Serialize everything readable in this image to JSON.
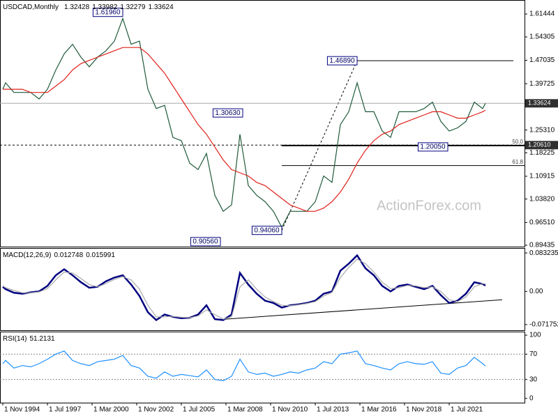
{
  "chart_data": [
    {
      "type": "line",
      "title": "USDCAD,Monthly",
      "ohlc": [
        1.32428,
        1.33982,
        1.32279,
        1.33624
      ],
      "watermark": "ActionForex.com",
      "x": [
        "1994-11-01",
        "1995-01-01",
        "1995-07-01",
        "1996-01-01",
        "1996-07-01",
        "1997-01-01",
        "1997-07-01",
        "1998-01-01",
        "1998-07-01",
        "1999-01-01",
        "1999-07-01",
        "2000-01-01",
        "2000-07-01",
        "2001-01-01",
        "2001-07-01",
        "2002-01-01",
        "2002-07-01",
        "2003-01-01",
        "2003-07-01",
        "2004-01-01",
        "2004-07-01",
        "2005-01-01",
        "2005-07-01",
        "2006-01-01",
        "2006-07-01",
        "2007-01-01",
        "2007-07-01",
        "2008-01-01",
        "2008-07-01",
        "2009-01-01",
        "2009-07-01",
        "2010-01-01",
        "2010-07-01",
        "2011-01-01",
        "2011-07-01",
        "2012-01-01",
        "2012-07-01",
        "2013-01-01",
        "2013-07-01",
        "2014-01-01",
        "2014-07-01",
        "2015-01-01",
        "2015-07-01",
        "2016-01-01",
        "2016-07-01",
        "2017-01-01",
        "2017-07-01",
        "2018-01-01",
        "2018-07-01",
        "2019-01-01",
        "2019-07-01",
        "2020-01-01",
        "2020-07-01",
        "2021-01-01",
        "2021-07-01",
        "2022-01-01",
        "2022-07-01",
        "2023-01-01",
        "2023-07-01",
        "2023-09-01"
      ],
      "series": [
        {
          "color": "#1f5a3a",
          "values": [
            1.38,
            1.4,
            1.37,
            1.37,
            1.37,
            1.35,
            1.38,
            1.44,
            1.49,
            1.52,
            1.48,
            1.45,
            1.48,
            1.5,
            1.53,
            1.6,
            1.52,
            1.53,
            1.38,
            1.32,
            1.33,
            1.23,
            1.22,
            1.15,
            1.13,
            1.18,
            1.05,
            1.0,
            1.02,
            1.24,
            1.08,
            1.05,
            1.03,
            1.0,
            0.95,
            1.0,
            1.0,
            1.0,
            1.03,
            1.11,
            1.09,
            1.27,
            1.31,
            1.4,
            1.31,
            1.31,
            1.25,
            1.23,
            1.31,
            1.31,
            1.31,
            1.32,
            1.34,
            1.28,
            1.25,
            1.26,
            1.28,
            1.34,
            1.32,
            1.33624
          ]
        },
        {
          "color": "#e0201a",
          "values": [
            1.38,
            1.38,
            1.38,
            1.38,
            1.37,
            1.37,
            1.37,
            1.39,
            1.41,
            1.44,
            1.46,
            1.47,
            1.48,
            1.49,
            1.5,
            1.51,
            1.51,
            1.51,
            1.49,
            1.46,
            1.43,
            1.39,
            1.35,
            1.31,
            1.27,
            1.24,
            1.2,
            1.16,
            1.13,
            1.12,
            1.11,
            1.09,
            1.08,
            1.06,
            1.04,
            1.02,
            1.01,
            1.0,
            1.0,
            1.01,
            1.03,
            1.06,
            1.1,
            1.15,
            1.19,
            1.22,
            1.24,
            1.25,
            1.27,
            1.28,
            1.29,
            1.3,
            1.31,
            1.31,
            1.3,
            1.29,
            1.29,
            1.3,
            1.31,
            1.315
          ]
        }
      ],
      "xlim": [
        "1994-09-01",
        "2026-01-01"
      ],
      "ylim": [
        0.89,
        1.658
      ],
      "yticks": [
        1.61444,
        1.54305,
        1.47035,
        1.39725,
        {
          "value": 1.2531,
          "label": "1.25310"
        },
        1.18225,
        1.10915,
        {
          "value": 1.0382,
          "label": "1.03820"
        },
        {
          "value": 0.9651,
          "label": "0.96510"
        },
        0.89435
      ],
      "annotations": [
        {
          "x": "2002-01-01",
          "value": 1.6196,
          "label": "1.61960"
        },
        {
          "x": "2009-03-01",
          "value": 1.3063,
          "label": "1.30630"
        },
        {
          "x": "2007-11-01",
          "value": 0.9056,
          "label": "0.90560"
        },
        {
          "x": "2011-07-01",
          "value": 0.9406,
          "label": "0.94060"
        },
        {
          "x": "2016-01-01",
          "value": 1.4689,
          "label": "1.46890"
        },
        {
          "x": "2021-06-01",
          "value": 1.2005,
          "label": "1.20050"
        }
      ],
      "lines": [
        {
          "x": [
            "2011-07-01",
            "2016-01-01"
          ],
          "values": [
            0.9406,
            1.4689
          ],
          "style": "dashed"
        },
        {
          "x": [
            "2016-01-01",
            "2025-05-01"
          ],
          "values": [
            1.4689,
            1.4689
          ],
          "style": "solid"
        }
      ],
      "hline": {
        "value": 1.2061,
        "label": "1.20610"
      },
      "fib_levels": [
        {
          "value": 1.20475,
          "label": "50.0"
        },
        {
          "value": 1.14241,
          "label": "61.8"
        }
      ]
    },
    {
      "type": "line",
      "title": "MACD(12,26,9)",
      "x": [
        "1994-11-01",
        "1995-01-01",
        "1995-07-01",
        "1996-01-01",
        "1996-07-01",
        "1997-01-01",
        "1997-07-01",
        "1998-01-01",
        "1998-07-01",
        "1999-01-01",
        "1999-07-01",
        "2000-01-01",
        "2000-07-01",
        "2001-01-01",
        "2001-07-01",
        "2002-01-01",
        "2002-07-01",
        "2003-01-01",
        "2003-07-01",
        "2004-01-01",
        "2004-07-01",
        "2005-01-01",
        "2005-07-01",
        "2006-01-01",
        "2006-07-01",
        "2007-01-01",
        "2007-07-01",
        "2008-01-01",
        "2008-07-01",
        "2009-01-01",
        "2009-07-01",
        "2010-01-01",
        "2010-07-01",
        "2011-01-01",
        "2011-07-01",
        "2012-01-01",
        "2012-07-01",
        "2013-01-01",
        "2013-07-01",
        "2014-01-01",
        "2014-07-01",
        "2015-01-01",
        "2015-07-01",
        "2016-01-01",
        "2016-07-01",
        "2017-01-01",
        "2017-07-01",
        "2018-01-01",
        "2018-07-01",
        "2019-01-01",
        "2019-07-01",
        "2020-01-01",
        "2020-07-01",
        "2021-01-01",
        "2021-07-01",
        "2022-01-01",
        "2022-07-01",
        "2023-01-01",
        "2023-07-01",
        "2023-09-01"
      ],
      "series": [
        {
          "color": "#000080",
          "values": [
            0.01,
            0.005,
            -0.003,
            -0.005,
            -0.002,
            0.0,
            0.012,
            0.035,
            0.048,
            0.035,
            0.02,
            0.008,
            0.01,
            0.022,
            0.03,
            0.035,
            0.015,
            -0.01,
            -0.045,
            -0.062,
            -0.05,
            -0.055,
            -0.058,
            -0.057,
            -0.05,
            -0.03,
            -0.06,
            -0.062,
            -0.05,
            0.04,
            0.015,
            -0.005,
            -0.02,
            -0.025,
            -0.035,
            -0.03,
            -0.028,
            -0.025,
            -0.02,
            -0.005,
            0.0,
            0.045,
            0.06,
            0.078,
            0.05,
            0.035,
            0.012,
            0.0,
            0.012,
            0.015,
            0.01,
            0.005,
            0.012,
            -0.008,
            -0.025,
            -0.02,
            -0.005,
            0.02,
            0.016,
            0.012748
          ]
        },
        {
          "color": "#a8a8a8",
          "values": [
            0.012,
            0.008,
            0.002,
            -0.003,
            -0.003,
            -0.001,
            0.006,
            0.025,
            0.042,
            0.04,
            0.028,
            0.015,
            0.01,
            0.017,
            0.026,
            0.032,
            0.025,
            0.005,
            -0.03,
            -0.055,
            -0.055,
            -0.054,
            -0.056,
            -0.057,
            -0.053,
            -0.04,
            -0.05,
            -0.06,
            -0.055,
            0.01,
            0.025,
            0.005,
            -0.012,
            -0.022,
            -0.03,
            -0.031,
            -0.029,
            -0.026,
            -0.022,
            -0.01,
            -0.002,
            0.03,
            0.052,
            0.07,
            0.06,
            0.042,
            0.02,
            0.006,
            0.008,
            0.013,
            0.012,
            0.008,
            0.01,
            0.0,
            -0.018,
            -0.022,
            -0.012,
            0.01,
            0.017,
            0.015991
          ]
        }
      ],
      "xlim": [
        "1994-09-01",
        "2026-01-01"
      ],
      "ylim": [
        -0.084,
        0.094
      ],
      "yticks": [
        0.083235,
        {
          "value": 0,
          "label": "0.00"
        },
        -0.071752
      ],
      "lines": [
        {
          "x": [
            "2007-10-01",
            "2024-09-01"
          ],
          "values": [
            -0.061,
            -0.018
          ],
          "style": "solid"
        }
      ]
    },
    {
      "type": "line",
      "title": "RSI(14)",
      "x": [
        "1994-11-01",
        "1995-01-01",
        "1995-07-01",
        "1996-01-01",
        "1996-07-01",
        "1997-01-01",
        "1997-07-01",
        "1998-01-01",
        "1998-07-01",
        "1999-01-01",
        "1999-07-01",
        "2000-01-01",
        "2000-07-01",
        "2001-01-01",
        "2001-07-01",
        "2002-01-01",
        "2002-07-01",
        "2003-01-01",
        "2003-07-01",
        "2004-01-01",
        "2004-07-01",
        "2005-01-01",
        "2005-07-01",
        "2006-01-01",
        "2006-07-01",
        "2007-01-01",
        "2007-07-01",
        "2008-01-01",
        "2008-07-01",
        "2009-01-01",
        "2009-07-01",
        "2010-01-01",
        "2010-07-01",
        "2011-01-01",
        "2011-07-01",
        "2012-01-01",
        "2012-07-01",
        "2013-01-01",
        "2013-07-01",
        "2014-01-01",
        "2014-07-01",
        "2015-01-01",
        "2015-07-01",
        "2016-01-01",
        "2016-07-01",
        "2017-01-01",
        "2017-07-01",
        "2018-01-01",
        "2018-07-01",
        "2019-01-01",
        "2019-07-01",
        "2020-01-01",
        "2020-07-01",
        "2021-01-01",
        "2021-07-01",
        "2022-01-01",
        "2022-07-01",
        "2023-01-01",
        "2023-07-01",
        "2023-09-01"
      ],
      "series": [
        {
          "color": "#1e90ff",
          "values": [
            55,
            60,
            48,
            52,
            50,
            55,
            62,
            70,
            75,
            60,
            55,
            52,
            58,
            60,
            62,
            68,
            52,
            48,
            35,
            32,
            42,
            35,
            38,
            36,
            34,
            45,
            30,
            28,
            35,
            62,
            42,
            38,
            40,
            35,
            38,
            42,
            40,
            45,
            48,
            58,
            55,
            70,
            72,
            75,
            55,
            52,
            48,
            45,
            55,
            58,
            55,
            54,
            58,
            40,
            38,
            48,
            52,
            65,
            55,
            51.2131
          ]
        }
      ],
      "xlim": [
        "1994-09-01",
        "2026-01-01"
      ],
      "ylim": [
        -6.7,
        105.6
      ],
      "yticks": [
        100,
        70,
        30,
        0
      ],
      "level_lines": [
        70,
        30
      ],
      "xticks": [
        {
          "value": "1994-11-01",
          "label": "1 Nov 1994"
        },
        {
          "value": "1997-07-01",
          "label": "1 Jul 1997"
        },
        {
          "value": "2000-03-01",
          "label": "1 Mar 2000"
        },
        {
          "value": "2002-11-01",
          "label": "1 Nov 2002"
        },
        {
          "value": "2005-07-01",
          "label": "1 Jul 2005"
        },
        {
          "value": "2008-03-01",
          "label": "1 Mar 2008"
        },
        {
          "value": "2010-11-01",
          "label": "1 Nov 2010"
        },
        {
          "value": "2013-07-01",
          "label": "1 Jul 2013"
        },
        {
          "value": "2016-03-01",
          "label": "1 Mar 2016"
        },
        {
          "value": "2018-11-01",
          "label": "1 Nov 2018"
        },
        {
          "value": "2021-07-01",
          "label": "1 Jul 2021"
        }
      ]
    }
  ]
}
